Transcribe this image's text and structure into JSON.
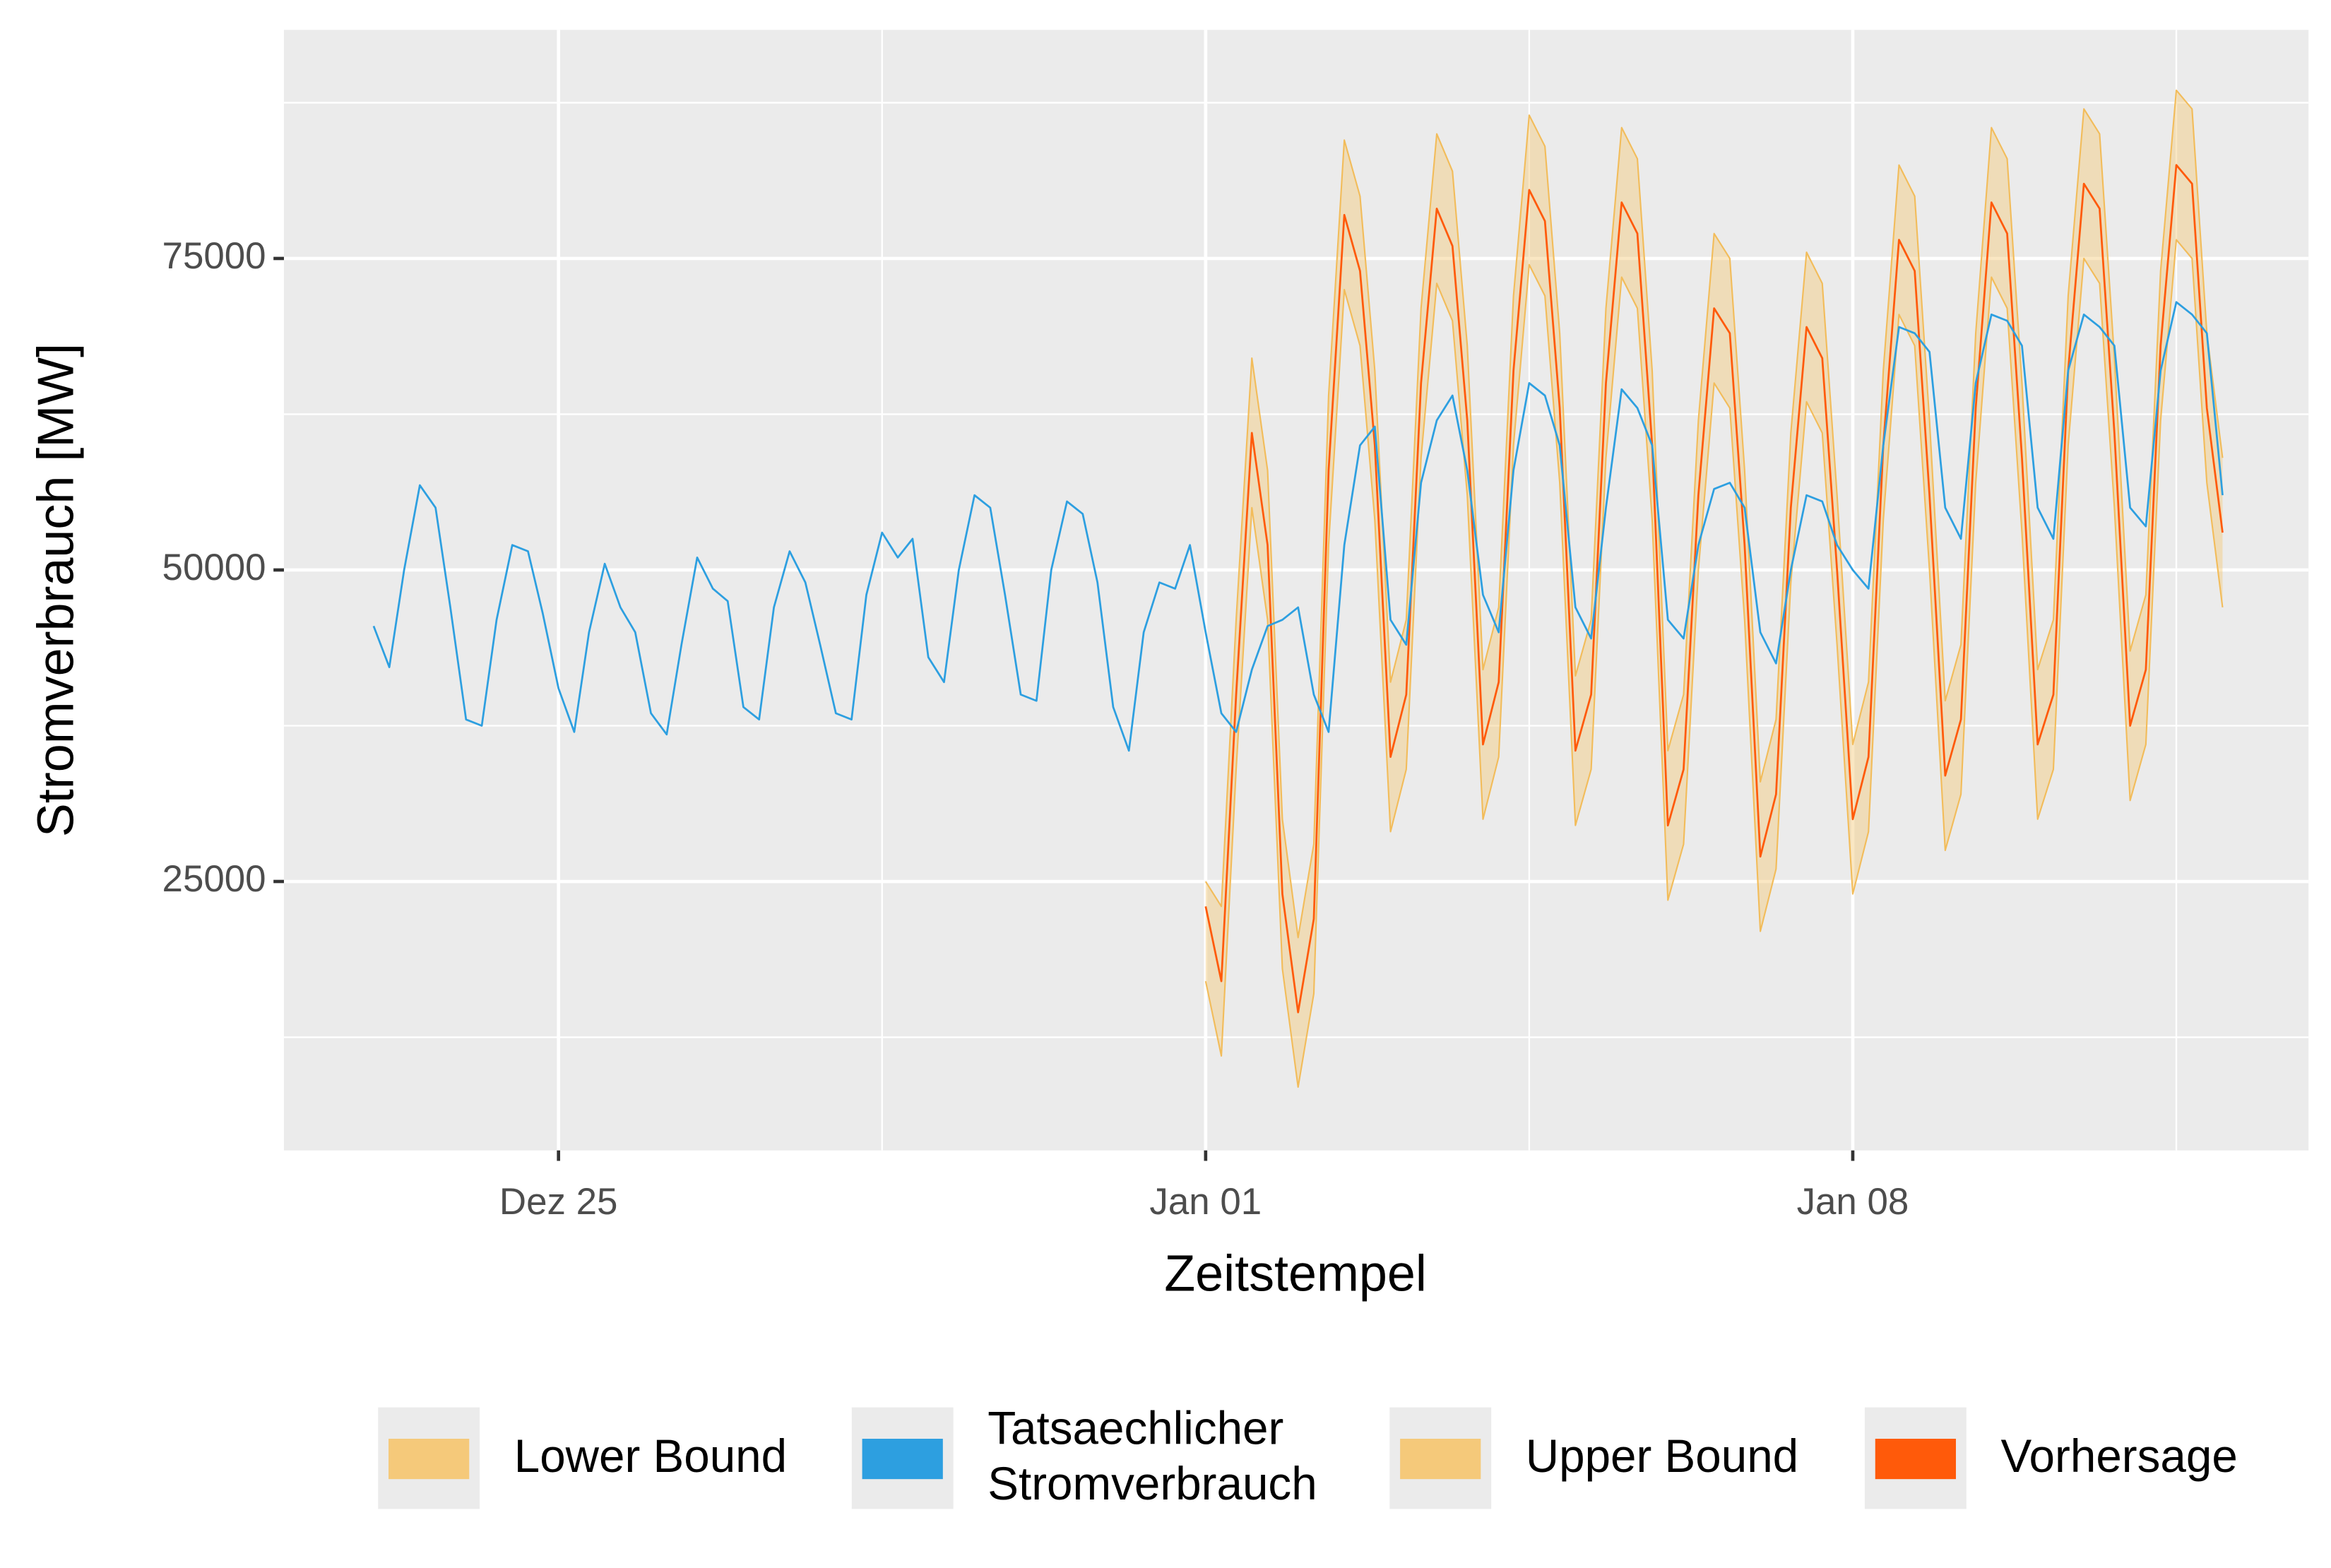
{
  "chart_data": {
    "type": "line",
    "x_label": "Zeitstempel",
    "y_label": "Stromverbrauch [MW]",
    "xlim": [
      22.03,
      43.93
    ],
    "ylim": [
      3417,
      93345
    ],
    "xticks": [
      {
        "value": 25,
        "label": "Dez 25"
      },
      {
        "value": 32,
        "label": "Jan 01"
      },
      {
        "value": 39,
        "label": "Jan 08"
      }
    ],
    "yticks": [
      25000,
      50000,
      75000
    ],
    "grid": true,
    "legend": "bottom",
    "band": {
      "lower": 0,
      "upper": 2
    },
    "series": [
      {
        "name": "Lower Bound",
        "color": "#f5c97a",
        "x": [
          32,
          32.17,
          32.33,
          32.5,
          32.67,
          32.83,
          33,
          33.17,
          33.33,
          33.5,
          33.67,
          33.83,
          34,
          34.17,
          34.33,
          34.5,
          34.67,
          34.83,
          35,
          35.17,
          35.33,
          35.5,
          35.67,
          35.83,
          36,
          36.17,
          36.33,
          36.5,
          36.67,
          36.83,
          37,
          37.17,
          37.33,
          37.5,
          37.67,
          37.83,
          38,
          38.17,
          38.33,
          38.5,
          38.67,
          38.83,
          39,
          39.17,
          39.33,
          39.5,
          39.67,
          39.83,
          40,
          40.17,
          40.33,
          40.5,
          40.67,
          40.83,
          41,
          41.17,
          41.33,
          41.5,
          41.67,
          41.83,
          42,
          42.17,
          42.33,
          42.5,
          42.67,
          42.83,
          43
        ],
        "values": [
          17000,
          11000,
          34000,
          55000,
          46000,
          18000,
          8500,
          16000,
          52000,
          72500,
          68000,
          54000,
          29000,
          34000,
          59000,
          73000,
          70000,
          56000,
          30000,
          35000,
          60000,
          74500,
          72000,
          57000,
          29500,
          34000,
          59000,
          73500,
          71000,
          54000,
          23500,
          28000,
          50000,
          65000,
          63000,
          46000,
          21000,
          26000,
          49000,
          63500,
          61000,
          44000,
          24000,
          29000,
          54000,
          70500,
          68000,
          50000,
          27500,
          32000,
          57000,
          73500,
          71000,
          53000,
          30000,
          34000,
          60000,
          75000,
          73000,
          55000,
          31500,
          36000,
          62000,
          76500,
          75000,
          57000,
          47000
        ]
      },
      {
        "name": "Tatsaechlicher\nStromverbrauch",
        "color": "#2d9fe0",
        "x": [
          23,
          23.17,
          23.33,
          23.5,
          23.67,
          23.83,
          24,
          24.17,
          24.33,
          24.5,
          24.67,
          24.83,
          25,
          25.17,
          25.33,
          25.5,
          25.67,
          25.83,
          26,
          26.17,
          26.33,
          26.5,
          26.67,
          26.83,
          27,
          27.17,
          27.33,
          27.5,
          27.67,
          27.83,
          28,
          28.17,
          28.33,
          28.5,
          28.67,
          28.83,
          29,
          29.17,
          29.33,
          29.5,
          29.67,
          29.83,
          30,
          30.17,
          30.33,
          30.5,
          30.67,
          30.83,
          31,
          31.17,
          31.33,
          31.5,
          31.67,
          31.83,
          32,
          32.17,
          32.33,
          32.5,
          32.67,
          32.83,
          33,
          33.17,
          33.33,
          33.5,
          33.67,
          33.83,
          34,
          34.17,
          34.33,
          34.5,
          34.67,
          34.83,
          35,
          35.17,
          35.33,
          35.5,
          35.67,
          35.83,
          36,
          36.17,
          36.33,
          36.5,
          36.67,
          36.83,
          37,
          37.17,
          37.33,
          37.5,
          37.67,
          37.83,
          38,
          38.17,
          38.33,
          38.5,
          38.67,
          38.83,
          39,
          39.17,
          39.33,
          39.5,
          39.67,
          39.83,
          40,
          40.17,
          40.33,
          40.5,
          40.67,
          40.83,
          41,
          41.17,
          41.33,
          41.5,
          41.67,
          41.83,
          42,
          42.17,
          42.33,
          42.5,
          42.67,
          42.83,
          43
        ],
        "values": [
          45500,
          42200,
          50000,
          56800,
          55000,
          47000,
          38000,
          37500,
          46000,
          52000,
          51500,
          46500,
          40500,
          37000,
          45000,
          50500,
          47000,
          45000,
          38500,
          36800,
          44000,
          51000,
          48500,
          47500,
          39000,
          38000,
          47000,
          51500,
          49000,
          44000,
          38500,
          38000,
          48000,
          53000,
          51000,
          52500,
          43000,
          41000,
          50000,
          56000,
          55000,
          48000,
          40000,
          39500,
          50000,
          55500,
          54500,
          49000,
          39000,
          35500,
          45000,
          49000,
          48500,
          52000,
          45000,
          38500,
          37000,
          42000,
          45500,
          46000,
          47000,
          40000,
          37000,
          52000,
          60000,
          61500,
          46000,
          44000,
          57000,
          62000,
          64000,
          58000,
          48000,
          45000,
          58000,
          65000,
          64000,
          60000,
          47000,
          44500,
          55000,
          64500,
          63000,
          60000,
          46000,
          44500,
          52000,
          56500,
          57000,
          55000,
          45000,
          42500,
          50000,
          56000,
          55500,
          52000,
          50000,
          48500,
          60000,
          69500,
          69000,
          67500,
          55000,
          52500,
          65000,
          70500,
          70000,
          68000,
          55000,
          52500,
          66000,
          70500,
          69500,
          68000,
          55000,
          53500,
          66000,
          71500,
          70500,
          69000,
          56000
        ]
      },
      {
        "name": "Upper Bound",
        "color": "#f5c97a",
        "x": [
          32,
          32.17,
          32.33,
          32.5,
          32.67,
          32.83,
          33,
          33.17,
          33.33,
          33.5,
          33.67,
          33.83,
          34,
          34.17,
          34.33,
          34.5,
          34.67,
          34.83,
          35,
          35.17,
          35.33,
          35.5,
          35.67,
          35.83,
          36,
          36.17,
          36.33,
          36.5,
          36.67,
          36.83,
          37,
          37.17,
          37.33,
          37.5,
          37.67,
          37.83,
          38,
          38.17,
          38.33,
          38.5,
          38.67,
          38.83,
          39,
          39.17,
          39.33,
          39.5,
          39.67,
          39.83,
          40,
          40.17,
          40.33,
          40.5,
          40.67,
          40.83,
          41,
          41.17,
          41.33,
          41.5,
          41.67,
          41.83,
          42,
          42.17,
          42.33,
          42.5,
          42.67,
          42.83,
          43
        ],
        "values": [
          25000,
          23000,
          46000,
          67000,
          58000,
          30000,
          20500,
          28000,
          64000,
          84500,
          80000,
          66000,
          41000,
          46000,
          71000,
          85000,
          82000,
          68000,
          42000,
          47000,
          72000,
          86500,
          84000,
          69000,
          41500,
          46000,
          71000,
          85500,
          83000,
          66000,
          35500,
          40000,
          62000,
          77000,
          75000,
          58000,
          33000,
          38000,
          61000,
          75500,
          73000,
          56000,
          36000,
          41000,
          66000,
          82500,
          80000,
          62000,
          39500,
          44000,
          69000,
          85500,
          83000,
          65000,
          42000,
          46000,
          72000,
          87000,
          85000,
          67000,
          43500,
          48000,
          74000,
          88500,
          87000,
          69000,
          59000
        ]
      },
      {
        "name": "Vorhersage",
        "color": "#ff5a0a",
        "x": [
          32,
          32.17,
          32.33,
          32.5,
          32.67,
          32.83,
          33,
          33.17,
          33.33,
          33.5,
          33.67,
          33.83,
          34,
          34.17,
          34.33,
          34.5,
          34.67,
          34.83,
          35,
          35.17,
          35.33,
          35.5,
          35.67,
          35.83,
          36,
          36.17,
          36.33,
          36.5,
          36.67,
          36.83,
          37,
          37.17,
          37.33,
          37.5,
          37.67,
          37.83,
          38,
          38.17,
          38.33,
          38.5,
          38.67,
          38.83,
          39,
          39.17,
          39.33,
          39.5,
          39.67,
          39.83,
          40,
          40.17,
          40.33,
          40.5,
          40.67,
          40.83,
          41,
          41.17,
          41.33,
          41.5,
          41.67,
          41.83,
          42,
          42.17,
          42.33,
          42.5,
          42.67,
          42.83,
          43
        ],
        "values": [
          23000,
          17000,
          40000,
          61000,
          52000,
          24000,
          14500,
          22000,
          58000,
          78500,
          74000,
          60000,
          35000,
          40000,
          65000,
          79000,
          76000,
          62000,
          36000,
          41000,
          66000,
          80500,
          78000,
          63000,
          35500,
          40000,
          65000,
          79500,
          77000,
          60000,
          29500,
          34000,
          56000,
          71000,
          69000,
          52000,
          27000,
          32000,
          55000,
          69500,
          67000,
          50000,
          30000,
          35000,
          60000,
          76500,
          74000,
          56000,
          33500,
          38000,
          63000,
          79500,
          77000,
          59000,
          36000,
          40000,
          66000,
          81000,
          79000,
          61000,
          37500,
          42000,
          68000,
          82500,
          81000,
          63000,
          53000
        ]
      }
    ]
  }
}
